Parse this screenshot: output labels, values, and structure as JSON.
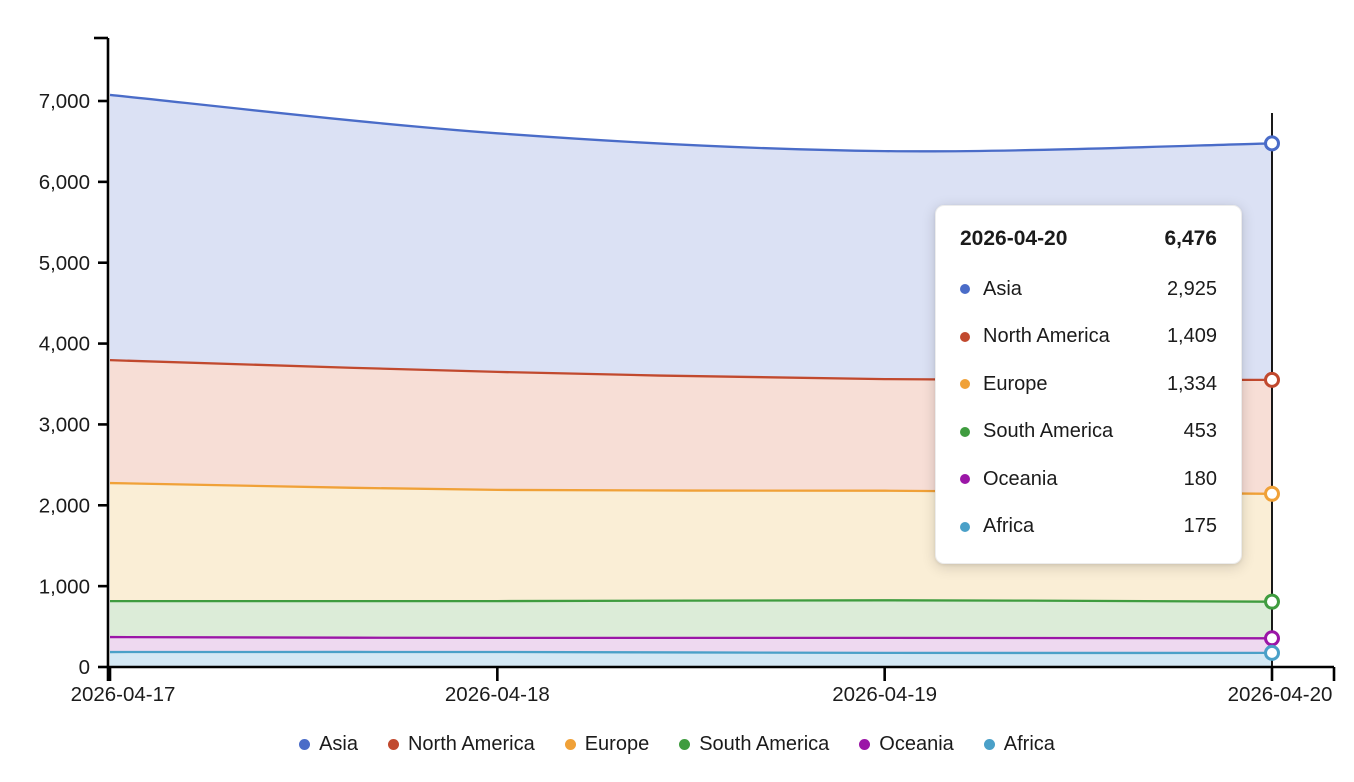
{
  "chart_data": {
    "type": "area",
    "stacked": true,
    "title": "",
    "xlabel": "",
    "ylabel": "",
    "x": [
      "2026-04-17",
      "2026-04-18",
      "2026-04-19",
      "2026-04-20"
    ],
    "series": [
      {
        "name": "Asia",
        "color": "#4a6cc8",
        "fill": "#dbe1f4",
        "values": [
          3280,
          2950,
          2820,
          2925
        ]
      },
      {
        "name": "North America",
        "color": "#c1492e",
        "fill": "#f7ded6",
        "values": [
          1520,
          1460,
          1380,
          1409
        ]
      },
      {
        "name": "Europe",
        "color": "#f0a138",
        "fill": "#faeed6",
        "values": [
          1460,
          1375,
          1355,
          1334
        ]
      },
      {
        "name": "South America",
        "color": "#3f9c3f",
        "fill": "#dcecd8",
        "values": [
          445,
          455,
          465,
          453
        ]
      },
      {
        "name": "Oceania",
        "color": "#9b16a7",
        "fill": "#eed9f0",
        "values": [
          185,
          175,
          185,
          180
        ]
      },
      {
        "name": "Africa",
        "color": "#4aa0c8",
        "fill": "#d4e8f4",
        "values": [
          185,
          185,
          175,
          175
        ]
      }
    ],
    "ylim": [
      0,
      7500
    ],
    "yticks": [
      0,
      1000,
      2000,
      3000,
      4000,
      5000,
      6000,
      7000
    ],
    "grid": false,
    "legend_position": "bottom",
    "highlighted_x": "2026-04-20"
  },
  "tooltip": {
    "date": "2026-04-20",
    "total": "6,476",
    "rows": [
      {
        "name": "Asia",
        "value": "2,925"
      },
      {
        "name": "North America",
        "value": "1,409"
      },
      {
        "name": "Europe",
        "value": "1,334"
      },
      {
        "name": "South America",
        "value": "453"
      },
      {
        "name": "Oceania",
        "value": "180"
      },
      {
        "name": "Africa",
        "value": "175"
      }
    ]
  },
  "legend": {
    "items": [
      "Asia",
      "North America",
      "Europe",
      "South America",
      "Oceania",
      "Africa"
    ]
  },
  "colors": {
    "axis": "#000000",
    "text": "#1b1b1b",
    "crosshair": "#000000",
    "marker_fill": "#ffffff"
  }
}
